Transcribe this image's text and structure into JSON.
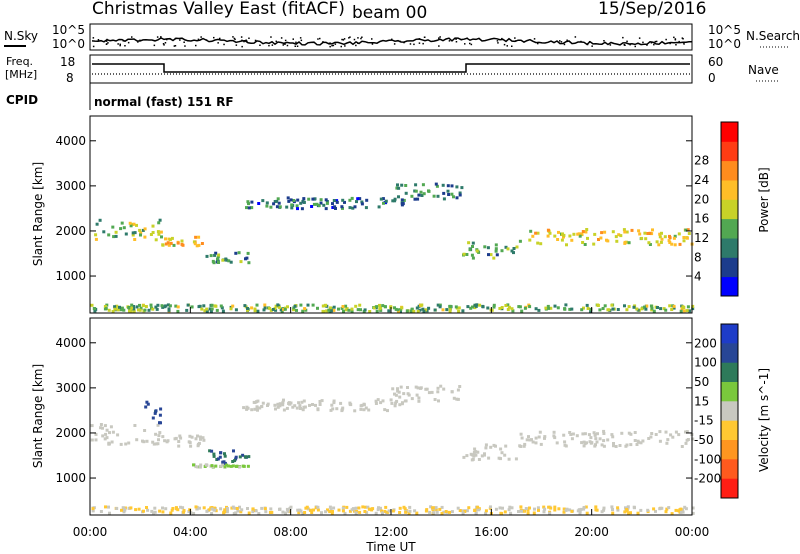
{
  "header": {
    "title": "Christmas Valley East (fitACF)",
    "beam": "beam 00",
    "date": "15/Sep/2016"
  },
  "noise_panel": {
    "left_label": "N.Sky",
    "left_ticks": [
      "10^5",
      "10^0"
    ],
    "right_label": "N.Search",
    "right_ticks": [
      "10^5",
      "10^0"
    ]
  },
  "freq_panel": {
    "left_label_1": "Freq.",
    "left_label_2": "[MHz]",
    "left_ticks": [
      "18",
      "8"
    ],
    "right_label": "Nave",
    "right_ticks": [
      "60",
      "0"
    ]
  },
  "cpid": {
    "label": "CPID",
    "program": "normal (fast) 151 RF"
  },
  "x_ticks": [
    "00:00",
    "04:00",
    "08:00",
    "12:00",
    "16:00",
    "20:00",
    "00:00"
  ],
  "x_axis_label": "Time UT",
  "colors": {
    "power": [
      "#0000ff",
      "#1c3c8c",
      "#2e7a6a",
      "#52a852",
      "#c8d228",
      "#ffbe28",
      "#ff8c1e",
      "#ff3c14",
      "#ff0000"
    ],
    "velocity": [
      "#1e3cc8",
      "#284696",
      "#2e7a5a",
      "#7ac83c",
      "#c8c8c0",
      "#ffc832",
      "#ff9620",
      "#ff5a1e",
      "#ff1e14"
    ]
  },
  "chart_data": [
    {
      "type": "heatmap",
      "name": "power",
      "ylabel": "Slant Range [km]",
      "yticks": [
        1000,
        2000,
        3000,
        4000
      ],
      "ylim": [
        180,
        4550
      ],
      "xlim": [
        0,
        24
      ],
      "colorbar_label": "Power [dB]",
      "colorbar_ticks": [
        "4",
        "8",
        "12",
        "16",
        "20",
        "24",
        "28"
      ],
      "colorbar_range": [
        0,
        30
      ],
      "features": [
        {
          "x0": 0.0,
          "x1": 2.8,
          "ycenter": 2050,
          "ywidth": 450,
          "level": 0.45
        },
        {
          "x0": 2.8,
          "x1": 4.5,
          "ycenter": 1800,
          "ywidth": 200,
          "level": 0.6
        },
        {
          "x0": 4.5,
          "x1": 6.3,
          "ycenter": 1450,
          "ywidth": 250,
          "level": 0.3
        },
        {
          "x0": 6.0,
          "x1": 12.5,
          "ycenter": 2650,
          "ywidth": 250,
          "level": 0.2
        },
        {
          "x0": 12.0,
          "x1": 14.8,
          "ycenter": 2900,
          "ywidth": 350,
          "level": 0.25
        },
        {
          "x0": 14.8,
          "x1": 17.0,
          "ycenter": 1600,
          "ywidth": 350,
          "level": 0.35
        },
        {
          "x0": 17.0,
          "x1": 24.0,
          "ycenter": 1900,
          "ywidth": 350,
          "level": 0.55
        },
        {
          "x0": 0.0,
          "x1": 24.0,
          "ycenter": 320,
          "ywidth": 150,
          "level": 0.4
        }
      ]
    },
    {
      "type": "heatmap",
      "name": "velocity",
      "ylabel": "Slant Range [km]",
      "yticks": [
        1000,
        2000,
        3000,
        4000
      ],
      "ylim": [
        180,
        4550
      ],
      "xlim": [
        0,
        24
      ],
      "colorbar_label": "Velocity [m s^-1]",
      "colorbar_ticks": [
        "200",
        "100",
        "50",
        "15",
        "-15",
        "-50",
        "-100",
        "-200"
      ],
      "colorbar_range": [
        -250,
        250
      ],
      "features": [
        {
          "x0": 0.0,
          "x1": 2.8,
          "ycenter": 2000,
          "ywidth": 450,
          "level": 0.0
        },
        {
          "x0": 2.0,
          "x1": 2.8,
          "ycenter": 2600,
          "ywidth": 700,
          "level": 180
        },
        {
          "x0": 2.8,
          "x1": 4.5,
          "ycenter": 1850,
          "ywidth": 250,
          "level": 0.0
        },
        {
          "x0": 4.5,
          "x1": 6.3,
          "ycenter": 1500,
          "ywidth": 300,
          "level": 160
        },
        {
          "x0": 4.0,
          "x1": 6.3,
          "ycenter": 1300,
          "ywidth": 60,
          "level": 40
        },
        {
          "x0": 6.0,
          "x1": 12.5,
          "ycenter": 2650,
          "ywidth": 250,
          "level": 0.0
        },
        {
          "x0": 12.0,
          "x1": 14.8,
          "ycenter": 2900,
          "ywidth": 350,
          "level": 0.0
        },
        {
          "x0": 14.8,
          "x1": 17.0,
          "ycenter": 1600,
          "ywidth": 350,
          "level": 0.0
        },
        {
          "x0": 17.0,
          "x1": 24.0,
          "ycenter": 1900,
          "ywidth": 350,
          "level": 0.0
        },
        {
          "x0": 0.0,
          "x1": 24.0,
          "ycenter": 320,
          "ywidth": 150,
          "level": -30
        }
      ]
    }
  ]
}
